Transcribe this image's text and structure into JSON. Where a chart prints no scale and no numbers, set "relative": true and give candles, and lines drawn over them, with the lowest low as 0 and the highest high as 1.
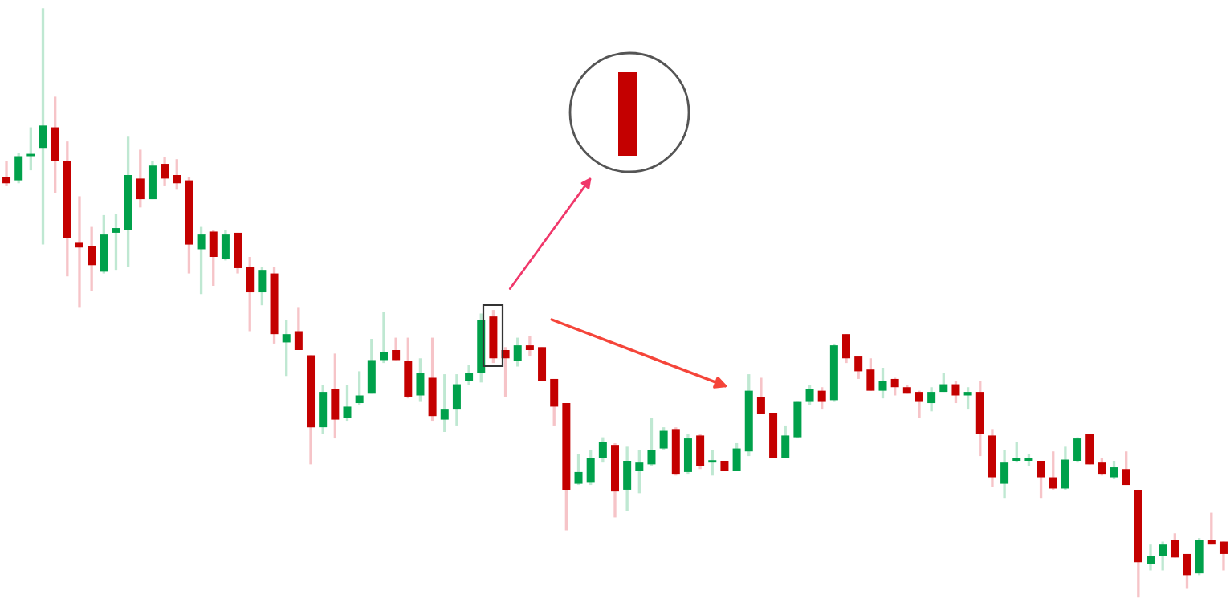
{
  "chart_data": {
    "type": "candlestick",
    "relative": true,
    "categories": [
      null,
      null,
      null,
      null,
      null,
      null,
      null,
      null,
      null,
      null,
      null,
      null,
      null,
      null,
      null,
      null,
      null,
      null,
      null,
      null,
      null,
      null,
      null,
      null,
      null,
      null,
      null,
      null,
      null,
      null,
      null,
      null,
      null,
      null,
      null,
      null,
      null,
      null,
      null,
      null,
      null,
      null,
      null,
      null,
      null,
      null,
      null,
      null,
      null,
      null,
      null,
      null,
      null,
      null,
      null,
      null,
      null,
      null,
      null,
      null,
      null,
      null,
      null,
      null,
      null,
      null,
      null,
      null,
      null,
      null,
      null,
      null,
      null,
      null,
      null,
      null,
      null,
      null,
      null,
      null,
      null,
      null,
      null,
      null,
      null,
      null,
      null,
      null,
      null,
      null,
      null,
      null,
      null,
      null,
      null,
      null,
      null,
      null,
      null,
      null,
      null
    ],
    "ohlc": [
      [
        0.714,
        0.741,
        0.698,
        0.703
      ],
      [
        0.708,
        0.755,
        0.703,
        0.749
      ],
      [
        0.749,
        0.798,
        0.725,
        0.752
      ],
      [
        0.763,
        1.0,
        0.599,
        0.801
      ],
      [
        0.798,
        0.85,
        0.687,
        0.741
      ],
      [
        0.741,
        0.774,
        0.545,
        0.61
      ],
      [
        0.602,
        0.681,
        0.493,
        0.594
      ],
      [
        0.597,
        0.629,
        0.52,
        0.564
      ],
      [
        0.553,
        0.649,
        0.55,
        0.616
      ],
      [
        0.619,
        0.651,
        0.556,
        0.627
      ],
      [
        0.624,
        0.782,
        0.561,
        0.717
      ],
      [
        0.711,
        0.76,
        0.662,
        0.676
      ],
      [
        0.676,
        0.741,
        0.676,
        0.733
      ],
      [
        0.736,
        0.747,
        0.698,
        0.711
      ],
      [
        0.717,
        0.744,
        0.692,
        0.703
      ],
      [
        0.708,
        0.714,
        0.55,
        0.599
      ],
      [
        0.591,
        0.629,
        0.515,
        0.616
      ],
      [
        0.621,
        0.624,
        0.529,
        0.578
      ],
      [
        0.575,
        0.624,
        0.572,
        0.616
      ],
      [
        0.619,
        0.619,
        0.55,
        0.559
      ],
      [
        0.561,
        0.578,
        0.452,
        0.518
      ],
      [
        0.518,
        0.561,
        0.496,
        0.556
      ],
      [
        0.55,
        0.561,
        0.431,
        0.447
      ],
      [
        0.433,
        0.471,
        0.376,
        0.447
      ],
      [
        0.452,
        0.493,
        0.42,
        0.42
      ],
      [
        0.411,
        0.411,
        0.226,
        0.289
      ],
      [
        0.289,
        0.36,
        0.278,
        0.349
      ],
      [
        0.354,
        0.414,
        0.27,
        0.302
      ],
      [
        0.305,
        0.36,
        0.3,
        0.324
      ],
      [
        0.33,
        0.384,
        0.327,
        0.343
      ],
      [
        0.346,
        0.439,
        0.346,
        0.403
      ],
      [
        0.403,
        0.485,
        0.398,
        0.417
      ],
      [
        0.42,
        0.441,
        0.403,
        0.403
      ],
      [
        0.401,
        0.441,
        0.338,
        0.341
      ],
      [
        0.343,
        0.406,
        0.332,
        0.381
      ],
      [
        0.373,
        0.441,
        0.3,
        0.308
      ],
      [
        0.302,
        0.379,
        0.281,
        0.319
      ],
      [
        0.319,
        0.379,
        0.292,
        0.362
      ],
      [
        0.368,
        0.395,
        0.36,
        0.381
      ],
      [
        0.381,
        0.482,
        0.365,
        0.471
      ],
      [
        0.477,
        0.488,
        0.398,
        0.406
      ],
      [
        0.42,
        0.425,
        0.341,
        0.406
      ],
      [
        0.401,
        0.441,
        0.392,
        0.428
      ],
      [
        0.428,
        0.444,
        0.409,
        0.42
      ],
      [
        0.425,
        0.425,
        0.368,
        0.368
      ],
      [
        0.371,
        0.371,
        0.292,
        0.324
      ],
      [
        0.33,
        0.33,
        0.114,
        0.183
      ],
      [
        0.193,
        0.243,
        0.191,
        0.213
      ],
      [
        0.196,
        0.251,
        0.191,
        0.237
      ],
      [
        0.237,
        0.272,
        0.229,
        0.264
      ],
      [
        0.259,
        0.262,
        0.136,
        0.18
      ],
      [
        0.183,
        0.256,
        0.147,
        0.232
      ],
      [
        0.215,
        0.251,
        0.177,
        0.229
      ],
      [
        0.226,
        0.305,
        0.223,
        0.251
      ],
      [
        0.253,
        0.289,
        0.251,
        0.283
      ],
      [
        0.286,
        0.289,
        0.207,
        0.21
      ],
      [
        0.213,
        0.278,
        0.21,
        0.27
      ],
      [
        0.275,
        0.278,
        0.218,
        0.223
      ],
      [
        0.229,
        0.251,
        0.207,
        0.232
      ],
      [
        0.232,
        0.232,
        0.215,
        0.215
      ],
      [
        0.215,
        0.262,
        0.215,
        0.253
      ],
      [
        0.248,
        0.379,
        0.24,
        0.351
      ],
      [
        0.341,
        0.373,
        0.311,
        0.311
      ],
      [
        0.313,
        0.313,
        0.237,
        0.237
      ],
      [
        0.237,
        0.292,
        0.237,
        0.275
      ],
      [
        0.272,
        0.332,
        0.27,
        0.332
      ],
      [
        0.332,
        0.36,
        0.327,
        0.354
      ],
      [
        0.351,
        0.357,
        0.319,
        0.332
      ],
      [
        0.335,
        0.431,
        0.332,
        0.428
      ],
      [
        0.447,
        0.447,
        0.398,
        0.406
      ],
      [
        0.409,
        0.409,
        0.371,
        0.384
      ],
      [
        0.387,
        0.406,
        0.351,
        0.351
      ],
      [
        0.351,
        0.39,
        0.338,
        0.368
      ],
      [
        0.371,
        0.373,
        0.343,
        0.357
      ],
      [
        0.357,
        0.36,
        0.346,
        0.346
      ],
      [
        0.349,
        0.351,
        0.305,
        0.332
      ],
      [
        0.33,
        0.357,
        0.316,
        0.349
      ],
      [
        0.349,
        0.381,
        0.349,
        0.362
      ],
      [
        0.362,
        0.368,
        0.33,
        0.343
      ],
      [
        0.343,
        0.357,
        0.319,
        0.349
      ],
      [
        0.349,
        0.368,
        0.24,
        0.278
      ],
      [
        0.275,
        0.286,
        0.188,
        0.204
      ],
      [
        0.193,
        0.251,
        0.169,
        0.229
      ],
      [
        0.232,
        0.264,
        0.229,
        0.237
      ],
      [
        0.232,
        0.243,
        0.223,
        0.237
      ],
      [
        0.232,
        0.232,
        0.169,
        0.204
      ],
      [
        0.204,
        0.248,
        0.183,
        0.185
      ],
      [
        0.185,
        0.256,
        0.183,
        0.234
      ],
      [
        0.232,
        0.272,
        0.229,
        0.27
      ],
      [
        0.278,
        0.278,
        0.226,
        0.226
      ],
      [
        0.229,
        0.237,
        0.207,
        0.21
      ],
      [
        0.204,
        0.232,
        0.202,
        0.221
      ],
      [
        0.218,
        0.248,
        0.191,
        0.191
      ],
      [
        0.183,
        0.183,
        0.0,
        0.06
      ],
      [
        0.057,
        0.09,
        0.046,
        0.071
      ],
      [
        0.071,
        0.095,
        0.046,
        0.09
      ],
      [
        0.098,
        0.109,
        0.068,
        0.068
      ],
      [
        0.074,
        0.074,
        0.016,
        0.038
      ],
      [
        0.041,
        0.101,
        0.038,
        0.098
      ],
      [
        0.098,
        0.144,
        0.09,
        0.09
      ],
      [
        0.095,
        0.095,
        0.046,
        0.074
      ]
    ]
  }
}
